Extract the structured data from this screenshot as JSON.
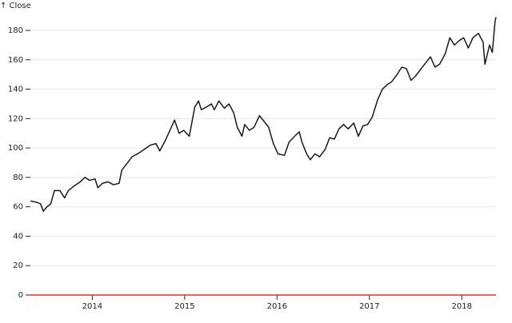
{
  "chart_data": {
    "type": "line",
    "y_label": "↑ Close",
    "x": [
      2013.33,
      2013.4,
      2013.44,
      2013.47,
      2013.51,
      2013.55,
      2013.59,
      2013.65,
      2013.7,
      2013.74,
      2013.8,
      2013.87,
      2013.92,
      2013.97,
      2014.03,
      2014.06,
      2014.11,
      2014.17,
      2014.23,
      2014.29,
      2014.32,
      2014.37,
      2014.43,
      2014.49,
      2014.56,
      2014.63,
      2014.69,
      2014.73,
      2014.79,
      2014.84,
      2014.89,
      2014.94,
      2014.99,
      2015.05,
      2015.08,
      2015.11,
      2015.15,
      2015.18,
      2015.24,
      2015.29,
      2015.32,
      2015.37,
      2015.43,
      2015.48,
      2015.53,
      2015.57,
      2015.62,
      2015.65,
      2015.7,
      2015.75,
      2015.81,
      2015.86,
      2015.91,
      2015.96,
      2016.01,
      2016.08,
      2016.13,
      2016.19,
      2016.24,
      2016.27,
      2016.32,
      2016.36,
      2016.41,
      2016.46,
      2016.52,
      2016.57,
      2016.62,
      2016.67,
      2016.72,
      2016.77,
      2016.83,
      2016.88,
      2016.93,
      2016.98,
      2017.03,
      2017.09,
      2017.14,
      2017.19,
      2017.24,
      2017.3,
      2017.35,
      2017.4,
      2017.45,
      2017.5,
      2017.56,
      2017.61,
      2017.66,
      2017.71,
      2017.76,
      2017.82,
      2017.87,
      2017.92,
      2017.97,
      2018.02,
      2018.07,
      2018.12,
      2018.18,
      2018.23,
      2018.25,
      2018.3,
      2018.33,
      2018.36,
      2018.37
    ],
    "series": [
      {
        "name": "Close",
        "color": "#1a1a1a",
        "values": [
          64,
          63,
          62,
          57,
          60,
          62,
          71,
          71,
          66,
          71,
          74,
          77,
          80,
          78,
          79,
          73,
          76,
          77,
          75,
          76,
          85,
          89,
          94,
          96,
          99,
          102,
          103,
          98,
          105,
          112,
          119,
          110,
          112,
          108,
          118,
          128,
          132,
          126,
          128,
          130,
          126,
          132,
          127,
          130,
          124,
          114,
          108,
          116,
          112,
          114,
          122,
          118,
          114,
          103,
          96,
          95,
          104,
          108,
          111,
          104,
          96,
          92,
          96,
          94,
          99,
          107,
          106,
          113,
          116,
          113,
          117,
          108,
          115,
          116,
          121,
          133,
          140,
          143,
          145,
          150,
          155,
          154,
          146,
          149,
          154,
          158,
          162,
          155,
          157,
          164,
          175,
          170,
          173,
          175,
          168,
          175,
          178,
          172,
          157,
          170,
          165,
          186,
          189
        ]
      }
    ],
    "xlim": [
      2013.33,
      2018.37
    ],
    "xticks": [
      2014,
      2015,
      2016,
      2017,
      2018
    ],
    "ylim": [
      0,
      190
    ],
    "yticks": [
      0,
      20,
      40,
      60,
      80,
      100,
      120,
      140,
      160,
      180
    ],
    "grid": true,
    "rule_y": 0,
    "rule_color": "#e03030"
  }
}
